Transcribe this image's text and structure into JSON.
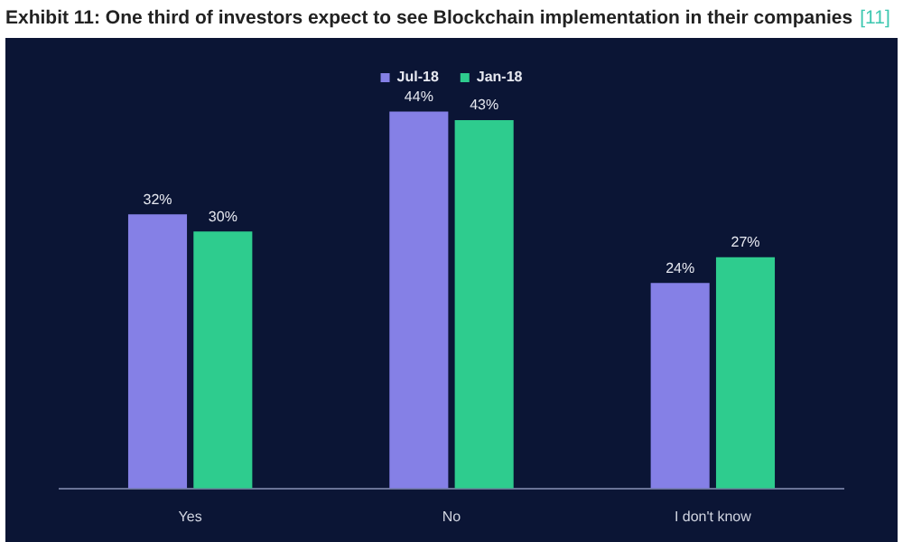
{
  "chart_data": {
    "type": "bar",
    "title": "Exhibit 11: One third of investors expect to see Blockchain implementation in their companies",
    "annotations": [
      "[11]"
    ],
    "categories": [
      "Yes",
      "No",
      "I don't know"
    ],
    "series": [
      {
        "name": "Jul-18",
        "color": "#8580e6",
        "values": [
          32,
          44,
          24
        ],
        "value_labels": [
          "32%",
          "44%",
          "24%"
        ]
      },
      {
        "name": "Jan-18",
        "color": "#2ecc8e",
        "values": [
          30,
          43,
          27
        ],
        "value_labels": [
          "30%",
          "43%",
          "27%"
        ]
      }
    ],
    "legend": "top",
    "grid": false
  }
}
